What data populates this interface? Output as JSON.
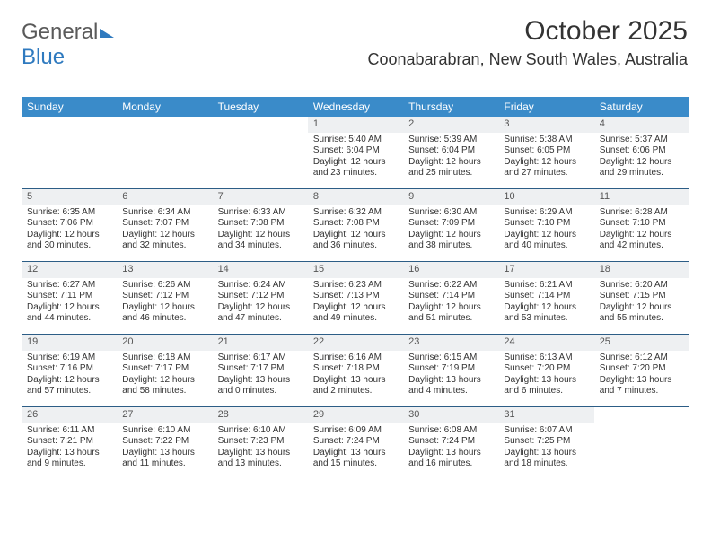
{
  "logo": {
    "part1": "General",
    "part2": "Blue"
  },
  "title": "October 2025",
  "location": "Coonabarabran, New South Wales, Australia",
  "colors": {
    "header_bg": "#3a8bc9",
    "header_text": "#ffffff",
    "daynum_bg": "#eef0f2",
    "week_divider": "#2c5d86",
    "top_rule": "#8a8a8a",
    "text": "#333333",
    "logo_gray": "#5a5a5a",
    "logo_blue": "#2f7abf"
  },
  "days_of_week": [
    "Sunday",
    "Monday",
    "Tuesday",
    "Wednesday",
    "Thursday",
    "Friday",
    "Saturday"
  ],
  "weeks": [
    [
      null,
      null,
      null,
      {
        "n": "1",
        "sr": "5:40 AM",
        "ss": "6:04 PM",
        "dl": "12 hours and 23 minutes."
      },
      {
        "n": "2",
        "sr": "5:39 AM",
        "ss": "6:04 PM",
        "dl": "12 hours and 25 minutes."
      },
      {
        "n": "3",
        "sr": "5:38 AM",
        "ss": "6:05 PM",
        "dl": "12 hours and 27 minutes."
      },
      {
        "n": "4",
        "sr": "5:37 AM",
        "ss": "6:06 PM",
        "dl": "12 hours and 29 minutes."
      }
    ],
    [
      {
        "n": "5",
        "sr": "6:35 AM",
        "ss": "7:06 PM",
        "dl": "12 hours and 30 minutes."
      },
      {
        "n": "6",
        "sr": "6:34 AM",
        "ss": "7:07 PM",
        "dl": "12 hours and 32 minutes."
      },
      {
        "n": "7",
        "sr": "6:33 AM",
        "ss": "7:08 PM",
        "dl": "12 hours and 34 minutes."
      },
      {
        "n": "8",
        "sr": "6:32 AM",
        "ss": "7:08 PM",
        "dl": "12 hours and 36 minutes."
      },
      {
        "n": "9",
        "sr": "6:30 AM",
        "ss": "7:09 PM",
        "dl": "12 hours and 38 minutes."
      },
      {
        "n": "10",
        "sr": "6:29 AM",
        "ss": "7:10 PM",
        "dl": "12 hours and 40 minutes."
      },
      {
        "n": "11",
        "sr": "6:28 AM",
        "ss": "7:10 PM",
        "dl": "12 hours and 42 minutes."
      }
    ],
    [
      {
        "n": "12",
        "sr": "6:27 AM",
        "ss": "7:11 PM",
        "dl": "12 hours and 44 minutes."
      },
      {
        "n": "13",
        "sr": "6:26 AM",
        "ss": "7:12 PM",
        "dl": "12 hours and 46 minutes."
      },
      {
        "n": "14",
        "sr": "6:24 AM",
        "ss": "7:12 PM",
        "dl": "12 hours and 47 minutes."
      },
      {
        "n": "15",
        "sr": "6:23 AM",
        "ss": "7:13 PM",
        "dl": "12 hours and 49 minutes."
      },
      {
        "n": "16",
        "sr": "6:22 AM",
        "ss": "7:14 PM",
        "dl": "12 hours and 51 minutes."
      },
      {
        "n": "17",
        "sr": "6:21 AM",
        "ss": "7:14 PM",
        "dl": "12 hours and 53 minutes."
      },
      {
        "n": "18",
        "sr": "6:20 AM",
        "ss": "7:15 PM",
        "dl": "12 hours and 55 minutes."
      }
    ],
    [
      {
        "n": "19",
        "sr": "6:19 AM",
        "ss": "7:16 PM",
        "dl": "12 hours and 57 minutes."
      },
      {
        "n": "20",
        "sr": "6:18 AM",
        "ss": "7:17 PM",
        "dl": "12 hours and 58 minutes."
      },
      {
        "n": "21",
        "sr": "6:17 AM",
        "ss": "7:17 PM",
        "dl": "13 hours and 0 minutes."
      },
      {
        "n": "22",
        "sr": "6:16 AM",
        "ss": "7:18 PM",
        "dl": "13 hours and 2 minutes."
      },
      {
        "n": "23",
        "sr": "6:15 AM",
        "ss": "7:19 PM",
        "dl": "13 hours and 4 minutes."
      },
      {
        "n": "24",
        "sr": "6:13 AM",
        "ss": "7:20 PM",
        "dl": "13 hours and 6 minutes."
      },
      {
        "n": "25",
        "sr": "6:12 AM",
        "ss": "7:20 PM",
        "dl": "13 hours and 7 minutes."
      }
    ],
    [
      {
        "n": "26",
        "sr": "6:11 AM",
        "ss": "7:21 PM",
        "dl": "13 hours and 9 minutes."
      },
      {
        "n": "27",
        "sr": "6:10 AM",
        "ss": "7:22 PM",
        "dl": "13 hours and 11 minutes."
      },
      {
        "n": "28",
        "sr": "6:10 AM",
        "ss": "7:23 PM",
        "dl": "13 hours and 13 minutes."
      },
      {
        "n": "29",
        "sr": "6:09 AM",
        "ss": "7:24 PM",
        "dl": "13 hours and 15 minutes."
      },
      {
        "n": "30",
        "sr": "6:08 AM",
        "ss": "7:24 PM",
        "dl": "13 hours and 16 minutes."
      },
      {
        "n": "31",
        "sr": "6:07 AM",
        "ss": "7:25 PM",
        "dl": "13 hours and 18 minutes."
      },
      null
    ]
  ],
  "labels": {
    "sunrise": "Sunrise:",
    "sunset": "Sunset:",
    "daylight": "Daylight:"
  }
}
